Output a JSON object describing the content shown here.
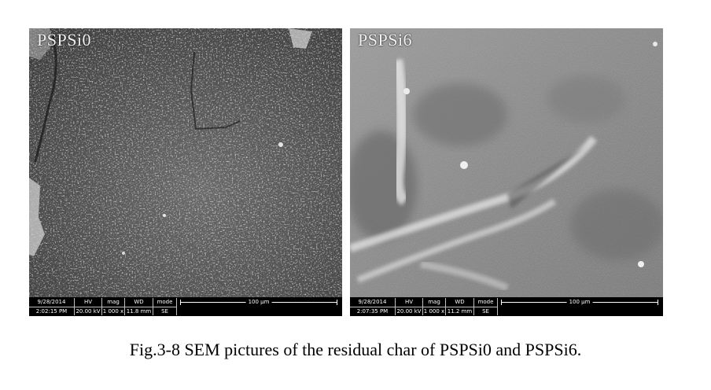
{
  "figure": {
    "caption": "Fig.3-8 SEM pictures of the residual char of PSPSi0 and PSPSi6.",
    "panels": [
      {
        "label": "PSPSi0",
        "databar": {
          "date": "9/28/2014",
          "time": "2:02:15 PM",
          "hv_header": "HV",
          "hv": "20.00 kV",
          "mag_header": "mag",
          "mag": "1 000 x",
          "wd_header": "WD",
          "wd": "11.8 mm",
          "mode_header": "mode",
          "mode": "SE",
          "scale_bar": "100 µm"
        }
      },
      {
        "label": "PSPSi6",
        "databar": {
          "date": "9/28/2014",
          "time": "2:07:35 PM",
          "hv_header": "HV",
          "hv": "20.00 kV",
          "mag_header": "mag",
          "mag": "1 000 x",
          "wd_header": "WD",
          "wd": "11.2 mm",
          "mode_header": "mode",
          "mode": "SE",
          "scale_bar": "100 µm"
        }
      }
    ]
  }
}
